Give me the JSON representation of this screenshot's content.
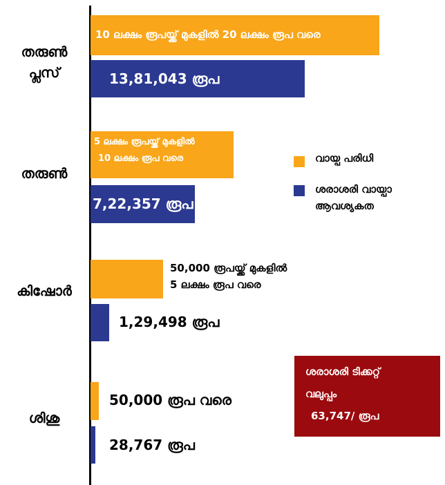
{
  "rows": [
    {
      "label": [
        "തരുൺ",
        "പ്ലസ്"
      ],
      "range": [
        "10 ലക്ഷം രൂപയ്ക്ക് മുകളിൽ 20 ലക്ഷം രൂപ വരെ"
      ],
      "average": "13,81,043 രൂപ"
    },
    {
      "label": [
        "തരുൺ"
      ],
      "range": [
        "5 ലക്ഷം രൂപയ്ക്ക് മുകളിൽ",
        "10 ലക്ഷം രൂപ വരെ"
      ],
      "average": "7,22,357 രൂപ"
    },
    {
      "label": [
        "കിഷോർ"
      ],
      "range": [
        "50,000 രൂപയ്ക്ക് മുകളിൽ",
        "5 ലക്ഷം രൂപ വരെ"
      ],
      "average": "1,29,498 രൂപ"
    },
    {
      "label": [
        "ശിശു"
      ],
      "range": [
        "50,000 രൂപ വരെ"
      ],
      "average": "28,767 രൂപ"
    }
  ],
  "legend": [
    {
      "name": [
        "വായ്പ പരിധി"
      ]
    },
    {
      "name": [
        "ശരാശരി വായ്പാ",
        "ആവശ്യകത"
      ]
    }
  ],
  "callout": [
    "ശരാശരി ടിക്കറ്റ്",
    "വലുപ്പം",
    "63,747/ രൂപ"
  ]
}
